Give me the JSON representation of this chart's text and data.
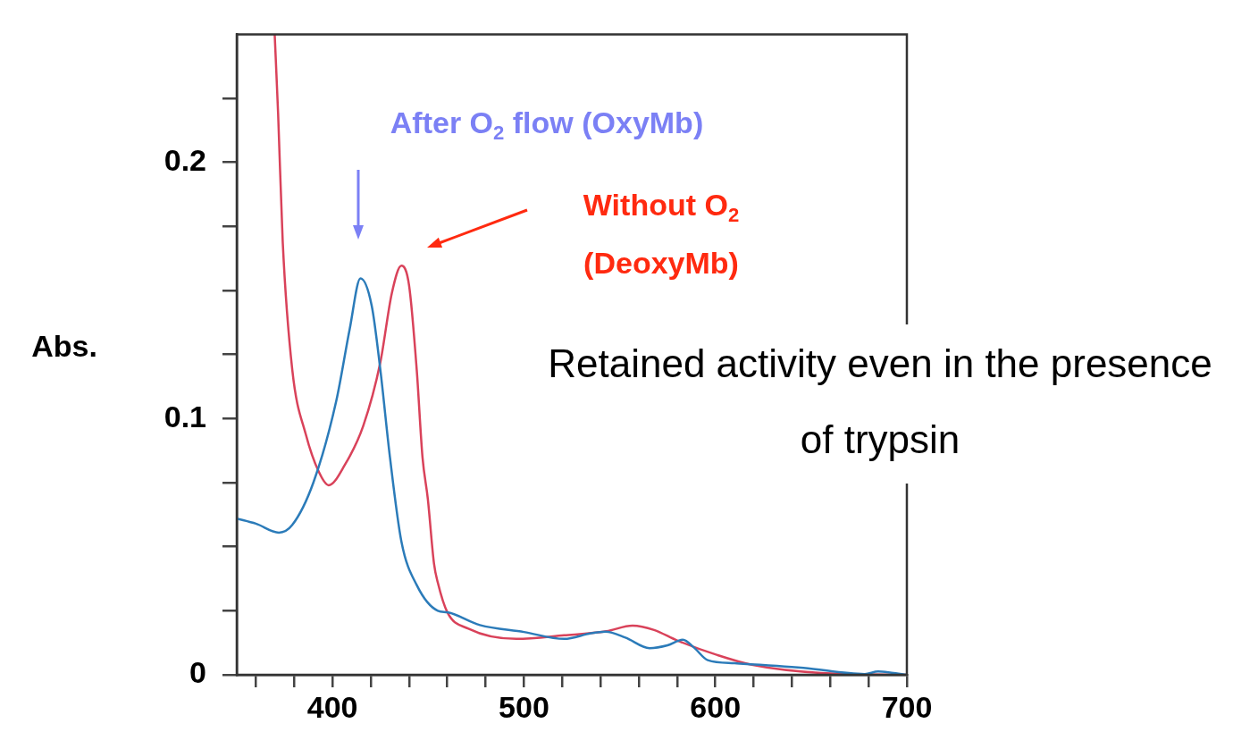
{
  "chart_data": {
    "type": "line",
    "ylabel": "Abs.",
    "xlim": [
      350,
      700
    ],
    "ylim": [
      0,
      0.25
    ],
    "xticks": [
      {
        "value": 360,
        "label": null
      },
      {
        "value": 380,
        "label": null
      },
      400,
      {
        "value": 420,
        "label": null
      },
      {
        "value": 440,
        "label": null
      },
      {
        "value": 460,
        "label": null
      },
      {
        "value": 480,
        "label": null
      },
      500,
      {
        "value": 520,
        "label": null
      },
      {
        "value": 540,
        "label": null
      },
      {
        "value": 560,
        "label": null
      },
      {
        "value": 580,
        "label": null
      },
      600,
      {
        "value": 620,
        "label": null
      },
      {
        "value": 640,
        "label": null
      },
      {
        "value": 660,
        "label": null
      },
      {
        "value": 680,
        "label": null
      },
      700
    ],
    "yticks": [
      0,
      {
        "value": 0.025,
        "label": null
      },
      {
        "value": 0.05,
        "label": null
      },
      {
        "value": 0.075,
        "label": null
      },
      0.1,
      {
        "value": 0.125,
        "label": null
      },
      {
        "value": 0.15,
        "label": null
      },
      {
        "value": 0.175,
        "label": null
      },
      0.2,
      {
        "value": 0.225,
        "label": null
      }
    ],
    "grid": false,
    "legend": false,
    "marker": "none",
    "line_style": "solid",
    "series": [
      {
        "color": "#2b7bb9",
        "x": [
          350,
          360,
          372,
          379,
          390,
          402,
          409,
          414.6,
          420.5,
          425,
          430,
          436,
          444,
          455,
          460,
          477,
          500,
          521,
          535,
          542.6,
          553,
          565.6,
          575,
          583,
          589,
          596,
          610,
          646,
          678,
          685,
          692,
          700
        ],
        "values": [
          0.061,
          0.059,
          0.0555,
          0.0585,
          0.075,
          0.107,
          0.135,
          0.1547,
          0.144,
          0.119,
          0.085,
          0.052,
          0.035,
          0.025,
          0.0244,
          0.0194,
          0.0167,
          0.014,
          0.0162,
          0.0168,
          0.0145,
          0.0104,
          0.0115,
          0.0137,
          0.0105,
          0.0057,
          0.0045,
          0.0027,
          0.0003,
          0.0013,
          0.0008,
          0
        ]
      },
      {
        "color": "#d9425a",
        "x": [
          369.8,
          371.6,
          374,
          379,
          386,
          393,
          398,
          406.5,
          416,
          425,
          431,
          436,
          440,
          444,
          447,
          449.8,
          453,
          455,
          460,
          471,
          496,
          521,
          543,
          556.7,
          568,
          580,
          601,
          619,
          655,
          700
        ],
        "values": [
          0.25,
          0.219,
          0.169,
          0.119,
          0.094,
          0.079,
          0.074,
          0.082,
          0.097,
          0.122,
          0.149,
          0.1597,
          0.152,
          0.119,
          0.085,
          0.0686,
          0.0435,
          0.036,
          0.0244,
          0.018,
          0.014,
          0.0154,
          0.017,
          0.0192,
          0.0175,
          0.0134,
          0.0077,
          0.0039,
          0.0007,
          0
        ]
      }
    ],
    "annotations": [
      "After O$_{2}$ flow (OxyMb)",
      "Without O$_{2}$ (DeoxyMb)",
      "Retained activity even in the presence of trypsin"
    ]
  }
}
